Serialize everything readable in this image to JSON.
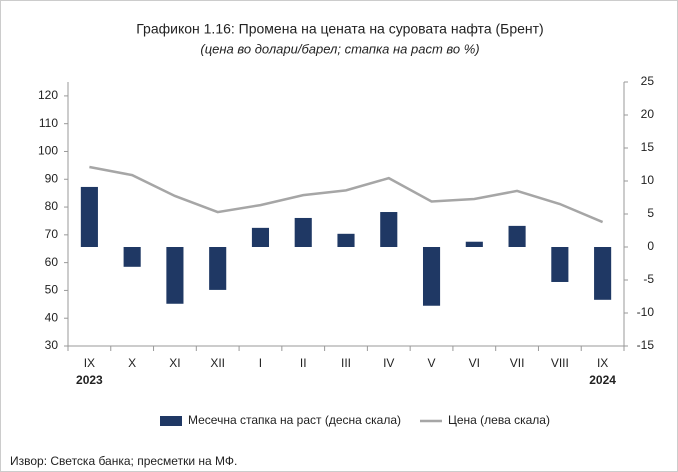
{
  "chart_data": {
    "type": "bar_line",
    "title": "Графикон 1.16: Промена на цената на суровата нафта (Брент)",
    "subtitle": "(цена во долари/барел; стапка на раст во %)",
    "categories": [
      "IX",
      "X",
      "XI",
      "XII",
      "I",
      "II",
      "III",
      "IV",
      "V",
      "VI",
      "VII",
      "VIII",
      "IX"
    ],
    "year_labels": [
      "2023",
      null,
      null,
      null,
      null,
      null,
      null,
      null,
      null,
      null,
      null,
      null,
      "2024"
    ],
    "series": [
      {
        "name": "Месечна стапка на раст (десна скала)",
        "color": "#1f3864",
        "kind": "bar",
        "axis": "y2",
        "values": [
          9.1,
          -3.0,
          -8.6,
          -6.5,
          2.9,
          4.4,
          2.0,
          5.3,
          -8.9,
          0.8,
          3.2,
          -5.3,
          -8.0
        ]
      },
      {
        "name": "Цена (лева скала)",
        "color": "#a6a6a6",
        "kind": "line",
        "values": [
          94.4,
          91.5,
          84.0,
          78.2,
          80.7,
          84.3,
          86.0,
          90.4,
          82.0,
          82.9,
          85.8,
          81.1,
          74.6
        ]
      }
    ],
    "ylim": [
      30,
      125
    ],
    "yticks": [
      30,
      40,
      50,
      60,
      70,
      80,
      90,
      100,
      110,
      120
    ],
    "y2lim": [
      -15,
      25
    ],
    "y2ticks": [
      -15,
      -10,
      -5,
      0,
      5,
      10,
      15,
      20,
      25
    ],
    "source": "Извор: Светска банка; пресметки на МФ."
  }
}
